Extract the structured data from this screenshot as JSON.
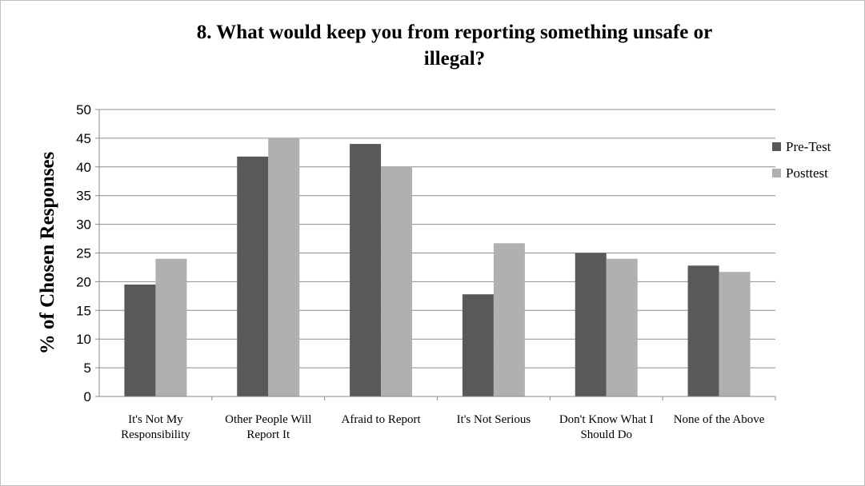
{
  "chart_data": {
    "type": "bar",
    "title": "8. What would keep you from reporting something unsafe or illegal?",
    "ylabel": "% of Chosen Responses",
    "xlabel": "",
    "ylim": [
      0,
      50
    ],
    "ytick_step": 5,
    "grid": true,
    "legend_position": "right",
    "categories": [
      "It's Not My Responsibility",
      "Other People Will Report It",
      "Afraid to Report",
      "It's Not Serious",
      "Don't Know What I Should Do",
      "None of the Above"
    ],
    "series": [
      {
        "name": "Pre-Test",
        "color": "#595959",
        "values": [
          19.5,
          41.8,
          44,
          17.8,
          25,
          22.8
        ]
      },
      {
        "name": "Posttest",
        "color": "#b0b0b0",
        "values": [
          24,
          45,
          40,
          26.7,
          24,
          21.7
        ]
      }
    ]
  }
}
